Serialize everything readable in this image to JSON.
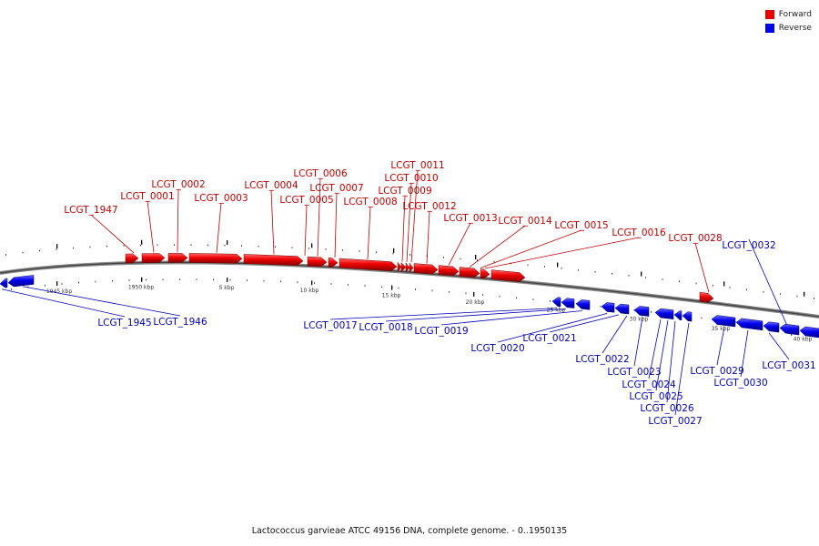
{
  "caption": "Lactococcus garvieae ATCC 49156 DNA, complete genome. - 0..1950135",
  "legend": {
    "forward": {
      "label": "Forward",
      "color": "#ee0000"
    },
    "reverse": {
      "label": "Reverse",
      "color": "#0000ee"
    }
  },
  "ruler_labels": [
    {
      "text": "1945 kbp",
      "pos": 1945
    },
    {
      "text": "1950 kbp",
      "pos": 1950
    },
    {
      "text": "5 kbp",
      "pos": 5
    },
    {
      "text": "10 kbp",
      "pos": 10
    },
    {
      "text": "15 kbp",
      "pos": 15
    },
    {
      "text": "20 kbp",
      "pos": 20
    },
    {
      "text": "25 kbp",
      "pos": 25
    },
    {
      "text": "30 kbp",
      "pos": 30
    },
    {
      "text": "35 kbp",
      "pos": 35
    },
    {
      "text": "40 kbp",
      "pos": 40
    }
  ],
  "genes": [
    {
      "name": "LCGT_1947",
      "strand": "forward"
    },
    {
      "name": "LCGT_0001",
      "strand": "forward"
    },
    {
      "name": "LCGT_0002",
      "strand": "forward"
    },
    {
      "name": "LCGT_0003",
      "strand": "forward"
    },
    {
      "name": "LCGT_0004",
      "strand": "forward"
    },
    {
      "name": "LCGT_0005",
      "strand": "forward"
    },
    {
      "name": "LCGT_0006",
      "strand": "forward"
    },
    {
      "name": "LCGT_0007",
      "strand": "forward"
    },
    {
      "name": "LCGT_0008",
      "strand": "forward"
    },
    {
      "name": "LCGT_0009",
      "strand": "forward"
    },
    {
      "name": "LCGT_0010",
      "strand": "forward"
    },
    {
      "name": "LCGT_0011",
      "strand": "forward"
    },
    {
      "name": "LCGT_0012",
      "strand": "forward"
    },
    {
      "name": "LCGT_0013",
      "strand": "forward"
    },
    {
      "name": "LCGT_0014",
      "strand": "forward"
    },
    {
      "name": "LCGT_0015",
      "strand": "forward"
    },
    {
      "name": "LCGT_0016",
      "strand": "forward"
    },
    {
      "name": "LCGT_0028",
      "strand": "forward"
    },
    {
      "name": "LCGT_1945",
      "strand": "reverse"
    },
    {
      "name": "LCGT_1946",
      "strand": "reverse"
    },
    {
      "name": "LCGT_0017",
      "strand": "reverse"
    },
    {
      "name": "LCGT_0018",
      "strand": "reverse"
    },
    {
      "name": "LCGT_0019",
      "strand": "reverse"
    },
    {
      "name": "LCGT_0020",
      "strand": "reverse"
    },
    {
      "name": "LCGT_0021",
      "strand": "reverse"
    },
    {
      "name": "LCGT_0022",
      "strand": "reverse"
    },
    {
      "name": "LCGT_0023",
      "strand": "reverse"
    },
    {
      "name": "LCGT_0024",
      "strand": "reverse"
    },
    {
      "name": "LCGT_0025",
      "strand": "reverse"
    },
    {
      "name": "LCGT_0026",
      "strand": "reverse"
    },
    {
      "name": "LCGT_0027",
      "strand": "reverse"
    },
    {
      "name": "LCGT_0029",
      "strand": "reverse"
    },
    {
      "name": "LCGT_0030",
      "strand": "reverse"
    },
    {
      "name": "LCGT_0031",
      "strand": "reverse"
    },
    {
      "name": "LCGT_0032",
      "strand": "reverse"
    }
  ]
}
